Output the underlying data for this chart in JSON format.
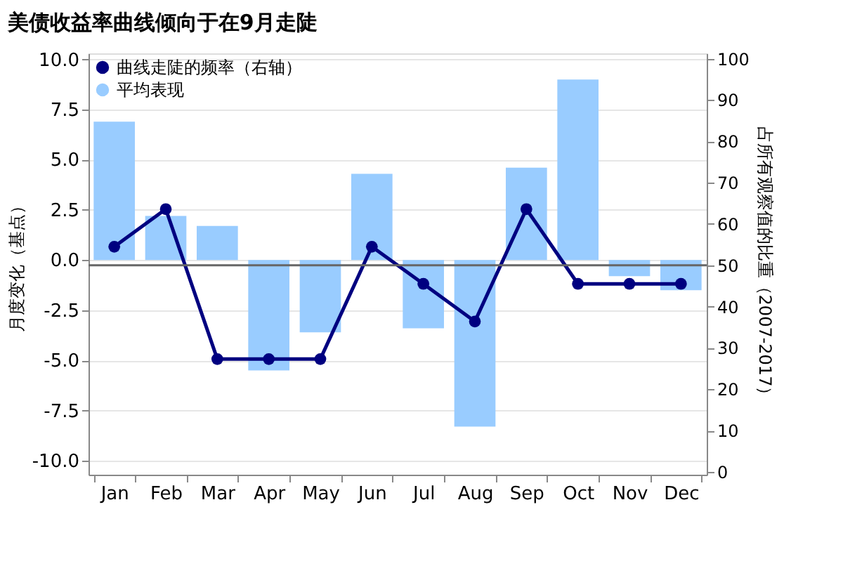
{
  "chart_data": {
    "type": "bar",
    "title": "美债收益率曲线倾向于在9月走陡",
    "ylabel": "月度变化（基点）",
    "y2label": "占所有观察值的比重（2007-2017）",
    "categories": [
      "Jan",
      "Feb",
      "Mar",
      "Apr",
      "May",
      "Jun",
      "Jul",
      "Aug",
      "Sep",
      "Oct",
      "Nov",
      "Dec"
    ],
    "series": [
      {
        "name": "曲线走陡的频率（右轴）",
        "type": "line",
        "axis": "y2",
        "color": "#000080",
        "values": [
          54.5,
          63.6,
          27.3,
          27.3,
          27.3,
          54.5,
          45.5,
          36.4,
          63.6,
          45.5,
          45.5,
          45.5
        ]
      },
      {
        "name": "平均表现",
        "color": "#99ccff",
        "values": [
          6.9,
          2.2,
          1.7,
          -5.5,
          -3.6,
          4.3,
          -3.4,
          -8.3,
          4.6,
          9.0,
          -0.8,
          -1.5
        ]
      }
    ],
    "ylim": [
      -10.7,
      10.3
    ],
    "yticks": [
      {
        "value": -10,
        "label": "-10.0"
      },
      {
        "value": -7.5,
        "label": "-7.5"
      },
      {
        "value": -5,
        "label": "-5.0"
      },
      {
        "value": -2.5,
        "label": "-2.5"
      },
      {
        "value": 0,
        "label": "0.0"
      },
      {
        "value": 2.5,
        "label": "2.5"
      },
      {
        "value": 5,
        "label": "5.0"
      },
      {
        "value": 7.5,
        "label": "7.5"
      },
      {
        "value": 10,
        "label": "10.0"
      }
    ],
    "y2lim": [
      -0.7,
      101.3
    ],
    "y2ticks": [
      0,
      10,
      20,
      30,
      40,
      50,
      60,
      70,
      80,
      90,
      100
    ],
    "ref_lines": [
      {
        "axis": "y2",
        "value": 50,
        "color": "#666666"
      }
    ],
    "grid": "y",
    "legend": "top left",
    "marker": "circle",
    "line_style": "solid"
  }
}
